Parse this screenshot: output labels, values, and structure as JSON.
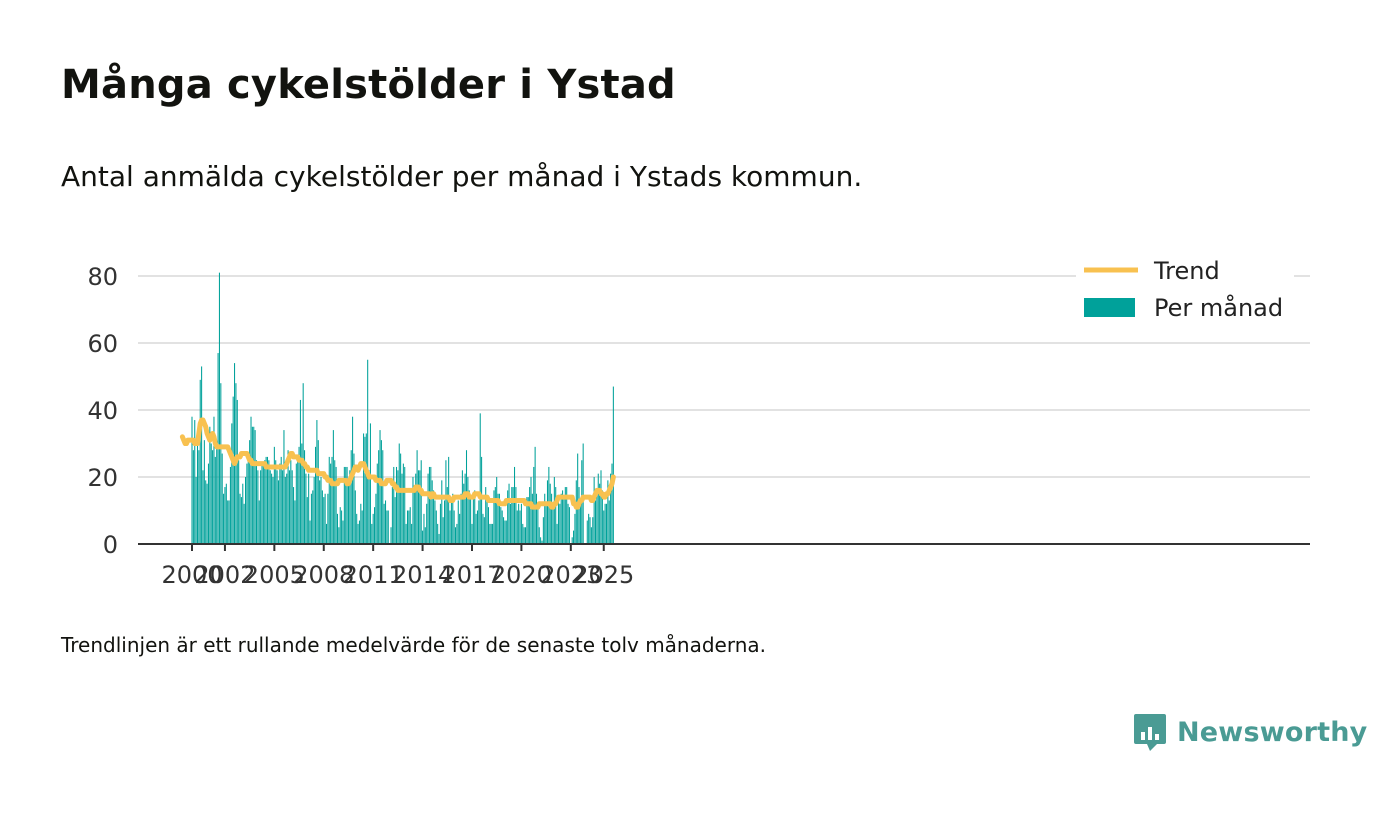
{
  "title": "Många cykelstölder i Ystad",
  "subtitle": "Antal anmälda cykelstölder per månad i Ystads kommun.",
  "note": "Trendlinjen är ett rullande medelvärde för de senaste tolv månaderna.",
  "brand": {
    "name": "Newsworthy",
    "color": "#4a9b94",
    "icon": "bar-chart-speech-icon"
  },
  "colors": {
    "bars": "#00a19a",
    "trend": "#f8c150",
    "grid": "#d9d9d9",
    "axis": "#333333"
  },
  "chart_data": {
    "type": "bar",
    "x_start": "2000-01",
    "x_end": "2025-06",
    "ylim": [
      0,
      80
    ],
    "yticks": [
      0,
      20,
      40,
      60,
      80
    ],
    "xticks": [
      "2000",
      "2002",
      "2005",
      "2008",
      "2011",
      "2014",
      "2017",
      "2020",
      "2023",
      "2025"
    ],
    "grid": true,
    "legend_position": "top-right",
    "series": [
      {
        "name": "Per månad",
        "type": "bar",
        "values": [
          38,
          28,
          37,
          20,
          34,
          28,
          49,
          53,
          22,
          31,
          19,
          18,
          24,
          35,
          30,
          28,
          38,
          26,
          30,
          57,
          81,
          48,
          27,
          15,
          17,
          18,
          13,
          13,
          23,
          36,
          44,
          54,
          48,
          43,
          25,
          15,
          14,
          18,
          12,
          20,
          24,
          27,
          31,
          38,
          35,
          35,
          34,
          25,
          22,
          13,
          22,
          24,
          24,
          25,
          26,
          26,
          25,
          22,
          21,
          20,
          29,
          25,
          22,
          19,
          24,
          26,
          22,
          34,
          20,
          21,
          28,
          22,
          25,
          22,
          17,
          13,
          24,
          26,
          29,
          43,
          30,
          48,
          28,
          21,
          14,
          21,
          7,
          15,
          16,
          20,
          29,
          37,
          31,
          19,
          20,
          16,
          14,
          15,
          6,
          15,
          26,
          24,
          26,
          34,
          25,
          23,
          9,
          5,
          11,
          10,
          7,
          23,
          23,
          23,
          18,
          22,
          28,
          38,
          27,
          16,
          9,
          6,
          7,
          12,
          10,
          33,
          32,
          33,
          55,
          22,
          36,
          6,
          9,
          11,
          15,
          24,
          28,
          34,
          31,
          28,
          12,
          13,
          10,
          10,
          0,
          5,
          17,
          23,
          14,
          23,
          22,
          30,
          27,
          21,
          24,
          23,
          6,
          10,
          10,
          11,
          6,
          20,
          16,
          21,
          28,
          22,
          22,
          25,
          4,
          9,
          5,
          12,
          21,
          23,
          23,
          19,
          16,
          13,
          10,
          6,
          3,
          12,
          19,
          8,
          13,
          25,
          17,
          26,
          10,
          13,
          15,
          10,
          5,
          6,
          13,
          9,
          15,
          22,
          18,
          21,
          28,
          20,
          16,
          14,
          6,
          14,
          16,
          9,
          10,
          13,
          39,
          26,
          9,
          8,
          17,
          14,
          11,
          6,
          6,
          6,
          16,
          17,
          20,
          15,
          15,
          11,
          10,
          8,
          7,
          7,
          16,
          18,
          12,
          17,
          17,
          23,
          17,
          10,
          12,
          10,
          12,
          6,
          5,
          5,
          14,
          14,
          17,
          20,
          15,
          23,
          29,
          15,
          12,
          5,
          2,
          1,
          8,
          15,
          12,
          19,
          23,
          18,
          15,
          11,
          20,
          17,
          6,
          14,
          12,
          15,
          16,
          14,
          17,
          17,
          12,
          11,
          0,
          2,
          4,
          9,
          19,
          27,
          17,
          12,
          25,
          30,
          0,
          0,
          7,
          9,
          8,
          5,
          8,
          20,
          13,
          16,
          21,
          18,
          22,
          16,
          10,
          12,
          12,
          19,
          13,
          21,
          24,
          47
        ]
      },
      {
        "name": "Trend",
        "type": "line",
        "values": [
          32,
          31,
          30,
          30,
          31,
          31,
          31,
          31,
          31,
          30,
          30,
          30,
          33,
          36,
          37,
          37,
          36,
          35,
          33,
          32,
          31,
          32,
          33,
          32,
          30,
          29,
          29,
          29,
          29,
          29,
          29,
          29,
          29,
          29,
          28,
          27,
          26,
          25,
          24,
          25,
          26,
          26,
          26,
          27,
          27,
          27,
          27,
          27,
          26,
          25,
          25,
          24,
          24,
          24,
          24,
          24,
          24,
          24,
          24,
          24,
          24,
          23,
          23,
          23,
          23,
          23,
          23,
          23,
          23,
          23,
          23,
          23,
          23,
          23,
          23,
          23,
          24,
          25,
          26,
          27,
          27,
          26,
          26,
          26,
          26,
          25,
          25,
          25,
          24,
          24,
          23,
          23,
          22,
          22,
          22,
          22,
          22,
          22,
          22,
          21,
          21,
          21,
          21,
          21,
          20,
          20,
          19,
          19,
          19,
          18,
          18,
          18,
          18,
          18,
          19,
          19,
          19,
          19,
          19,
          19,
          18,
          18,
          19,
          20,
          21,
          22,
          23,
          23,
          22,
          23,
          24,
          24,
          24,
          23,
          22,
          21,
          20,
          20,
          20,
          20,
          20,
          19,
          19,
          19,
          19,
          18,
          18,
          18,
          18,
          19,
          19,
          19,
          19,
          18,
          18,
          17,
          17,
          16,
          16,
          16,
          16,
          16,
          16,
          16,
          16,
          16,
          16,
          16,
          16,
          16,
          17,
          17,
          17,
          16,
          16,
          15,
          15,
          15,
          15,
          15,
          15,
          14,
          15,
          15,
          14,
          14,
          14,
          14,
          14,
          14,
          14,
          14,
          14,
          14,
          14,
          13,
          13,
          13,
          14,
          14,
          14,
          14,
          14,
          14,
          14,
          14,
          15,
          15,
          15,
          14,
          14,
          14,
          14,
          15,
          15,
          15,
          15,
          14,
          14,
          14,
          14,
          14,
          14,
          13,
          13,
          13,
          13,
          13,
          13,
          13,
          13,
          12,
          12,
          12,
          12,
          12,
          13,
          13,
          13,
          13,
          13,
          13,
          13,
          13,
          13,
          13,
          13,
          13,
          13,
          13,
          12,
          12,
          12,
          12,
          12,
          11,
          11,
          11,
          11,
          11,
          12,
          12,
          12,
          12,
          12,
          12,
          12,
          12,
          12,
          11,
          11,
          12,
          12,
          13,
          14,
          14,
          14,
          14,
          14,
          14,
          14,
          14,
          14,
          14,
          14,
          12,
          12,
          11,
          11,
          12,
          13,
          13,
          14,
          14,
          14,
          14,
          14,
          14,
          13,
          13,
          14,
          15,
          16,
          16,
          16,
          15,
          15,
          14,
          14,
          15,
          15,
          16,
          17,
          18,
          20
        ]
      }
    ]
  }
}
